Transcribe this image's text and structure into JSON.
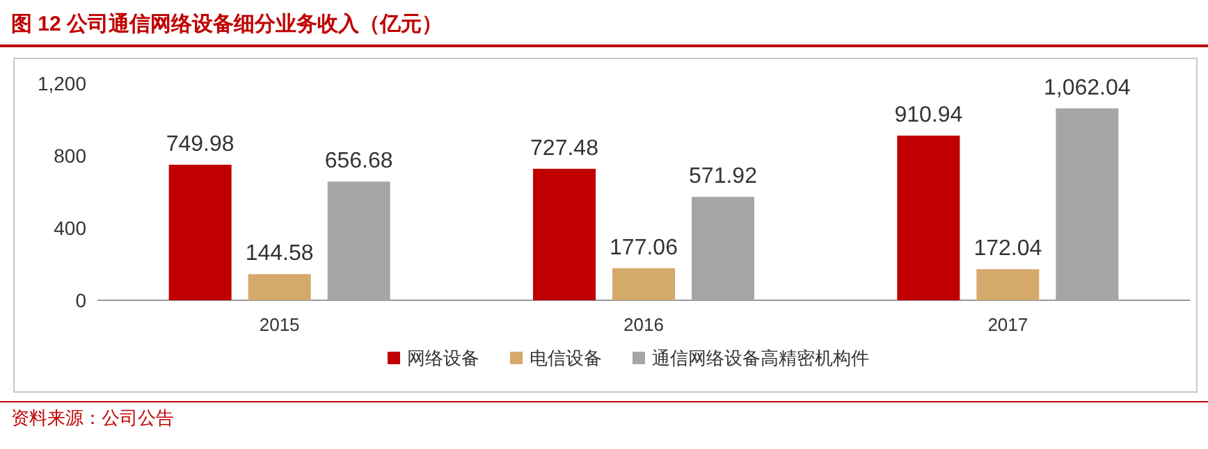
{
  "chart_data": {
    "type": "bar",
    "title": "图 12   公司通信网络设备细分业务收入（亿元）",
    "annotations": [
      "资料来源：公司公告"
    ],
    "categories": [
      "2015",
      "2016",
      "2017"
    ],
    "series": [
      {
        "name": "网络设备",
        "color": "#c00000",
        "values": [
          749.98,
          727.48,
          910.94
        ],
        "value_labels": [
          "749.98",
          "727.48",
          "910.94"
        ]
      },
      {
        "name": "电信设备",
        "color": "#d4a96a",
        "values": [
          144.58,
          177.06,
          172.04
        ],
        "value_labels": [
          "144.58",
          "177.06",
          "172.04"
        ]
      },
      {
        "name": "通信网络设备高精密机构件",
        "color": "#a6a6a6",
        "values": [
          656.68,
          571.92,
          1062.04
        ],
        "value_labels": [
          "656.68",
          "571.92",
          "1,062.04"
        ]
      }
    ],
    "ylim": [
      0,
      1200
    ],
    "yticks": [
      0,
      400,
      800,
      {
        "value": 1200,
        "label": "1,200"
      }
    ],
    "grid": false,
    "legend": "bottom"
  }
}
